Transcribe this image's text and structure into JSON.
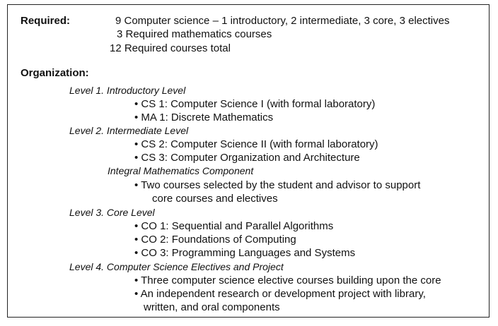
{
  "required": {
    "label": "Required:",
    "lines": [
      "9 Computer science – 1 introductory, 2 intermediate, 3 core, 3 electives",
      "3 Required mathematics courses",
      "12 Required courses total"
    ]
  },
  "organization": {
    "label": "Organization:",
    "level1": {
      "heading": "Level 1. Introductory Level",
      "items": [
        "• CS 1: Computer Science I (with formal laboratory)",
        "• MA 1: Discrete Mathematics"
      ]
    },
    "level2": {
      "heading": "Level 2. Intermediate Level",
      "items": [
        "• CS 2: Computer Science II (with formal laboratory)",
        "• CS 3: Computer Organization and Architecture"
      ],
      "math": {
        "heading": "Integral Mathematics Component",
        "items": [
          "• Two courses selected by the student and advisor to support",
          "core courses and electives"
        ]
      }
    },
    "level3": {
      "heading": "Level 3. Core Level",
      "items": [
        "• CO 1: Sequential and Parallel Algorithms",
        "• CO 2: Foundations of Computing",
        "• CO 3: Programming Languages and Systems"
      ]
    },
    "level4": {
      "heading": "Level 4. Computer Science Electives and Project",
      "items": [
        "• Three computer science elective courses building upon the core",
        "• An independent research or development project with library,",
        "written, and oral components"
      ]
    }
  }
}
